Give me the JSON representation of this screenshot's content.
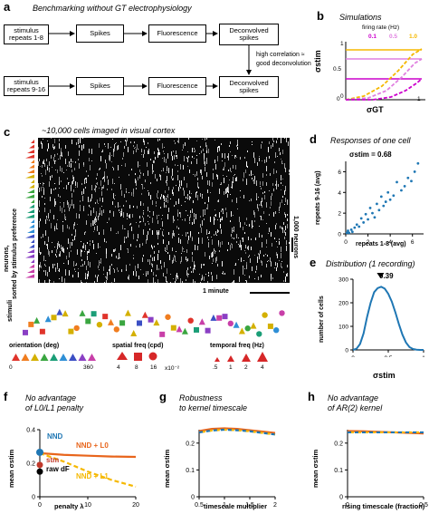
{
  "panel_a": {
    "label": "a",
    "title": "Benchmarking without GT electrophysiology",
    "row1": [
      "stimulus repeats 1-8",
      "Spikes",
      "Fluorescence",
      "Deconvolved spikes"
    ],
    "row2": [
      "stimulus repeats 9-16",
      "Spikes",
      "Fluorescence",
      "Deconvolved spikes"
    ],
    "note_line1": "high correlation ≈",
    "note_line2": "good deconvolution"
  },
  "panel_b": {
    "label": "b",
    "title": "Simulations",
    "legend_title": "firing rate (Hz)",
    "rates": [
      "0.1",
      "0.5",
      "1.0"
    ],
    "colors": [
      "#cc00cc",
      "#e080e0",
      "#f5b800"
    ],
    "xlabel": "σGT",
    "ylabel": "σstim",
    "ticks_x": [
      "0",
      "1"
    ],
    "ticks_y": [
      "0",
      "0.5",
      "1"
    ]
  },
  "panel_c": {
    "label": "c",
    "title": "~10,000 cells imaged in visual cortex",
    "ylabel_line1": "neurons,",
    "ylabel_line2": "sorted by stimulus preference",
    "scale_neurons": "1,000 neurons",
    "scale_time": "1 minute",
    "stimuli_label": "stimuli",
    "legend": {
      "orientation": "orientation (deg)",
      "orientation_ticks": [
        "0",
        "360"
      ],
      "spatial": "spatial freq (cpd)",
      "spatial_ticks": [
        "4",
        "8",
        "16"
      ],
      "spatial_unit": "x10⁻²",
      "temporal": "temporal freq (Hz)",
      "temporal_ticks": [
        ".5",
        "1",
        "2",
        "4"
      ]
    },
    "orientation_colors": [
      "#e0342b",
      "#f07d1f",
      "#d4b000",
      "#3aa640",
      "#1b9e77",
      "#2f8fd6",
      "#3b4fc4",
      "#8a3fc4",
      "#c83fa8"
    ]
  },
  "panel_d": {
    "label": "d",
    "title": "Responses of one cell",
    "annotation": "σstim = 0.68",
    "xlabel": "repeats 1-8 (avg)",
    "ylabel": "repeats 9-16 (avg)",
    "ticks_x": [
      "0",
      "2",
      "4",
      "6"
    ],
    "ticks_y": [
      "0",
      "2",
      "4",
      "6"
    ]
  },
  "panel_e": {
    "label": "e",
    "title": "Distribution (1 recording)",
    "marker": "0.39",
    "xlabel": "σstim",
    "ylabel": "number of cells",
    "ticks_x": [
      "0",
      "0.5",
      "1"
    ],
    "ticks_y": [
      "0",
      "100",
      "200",
      "300"
    ]
  },
  "panel_f": {
    "label": "f",
    "title_line1": "No advantage",
    "title_line2": "of L0/L1 penalty",
    "xlabel": "penalty λ",
    "ylabel": "mean σstim",
    "ticks_x": [
      "0",
      "10",
      "20"
    ],
    "ticks_y": [
      "0",
      "0.2",
      "0.4"
    ],
    "labels": {
      "nnd": "NND",
      "nnd_l0": "NND + L0",
      "stm": "stm",
      "raw": "raw dF",
      "nnd_l1": "NND + L1"
    }
  },
  "panel_g": {
    "label": "g",
    "title_line1": "Robustness",
    "title_line2": "to kernel timescale",
    "xlabel": "timescale multiplier",
    "ylabel": "mean σstim",
    "ticks_x": [
      "0.5",
      "1",
      "1.5",
      "2"
    ],
    "ticks_y": [
      "0",
      "0.1",
      "0.2"
    ]
  },
  "panel_h": {
    "label": "h",
    "title_line1": "No advantage",
    "title_line2": "of AR(2) kernel",
    "xlabel": "rising timescale (fraction)",
    "ylabel": "mean σstim",
    "ticks_x": [
      "0",
      "0.5"
    ],
    "ticks_y": [
      "0",
      "0.1",
      "0.2"
    ]
  },
  "chart_data": [
    {
      "type": "scatter",
      "title": "Responses of one cell",
      "xlabel": "repeats 1-8 (avg)",
      "ylabel": "repeats 9-16 (avg)",
      "xlim": [
        0,
        7
      ],
      "ylim": [
        0,
        7
      ],
      "points": [
        [
          0.1,
          0.1
        ],
        [
          0.2,
          0.3
        ],
        [
          0.3,
          0.1
        ],
        [
          0.5,
          0.4
        ],
        [
          0.6,
          0.2
        ],
        [
          0.8,
          0.6
        ],
        [
          1.0,
          0.9
        ],
        [
          1.2,
          0.7
        ],
        [
          1.4,
          1.5
        ],
        [
          1.6,
          1.1
        ],
        [
          1.8,
          1.9
        ],
        [
          2.0,
          1.4
        ],
        [
          2.2,
          2.5
        ],
        [
          2.4,
          2.0
        ],
        [
          2.6,
          1.6
        ],
        [
          2.8,
          2.9
        ],
        [
          3.0,
          2.3
        ],
        [
          3.2,
          3.6
        ],
        [
          3.4,
          2.7
        ],
        [
          3.6,
          3.1
        ],
        [
          3.8,
          4.0
        ],
        [
          4.0,
          3.3
        ],
        [
          4.3,
          3.7
        ],
        [
          4.6,
          5.0
        ],
        [
          5.0,
          4.2
        ],
        [
          5.3,
          4.6
        ],
        [
          5.6,
          5.4
        ],
        [
          5.9,
          5.1
        ],
        [
          6.2,
          6.0
        ],
        [
          6.5,
          6.8
        ]
      ]
    },
    {
      "type": "area",
      "title": "Distribution (1 recording)",
      "xlabel": "σstim",
      "ylabel": "number of cells",
      "xlim": [
        0,
        1
      ],
      "ylim": [
        0,
        300
      ],
      "x": [
        0.0,
        0.05,
        0.1,
        0.15,
        0.2,
        0.25,
        0.3,
        0.35,
        0.4,
        0.45,
        0.5,
        0.55,
        0.6,
        0.65,
        0.7,
        0.75,
        0.8,
        0.85,
        0.9,
        0.95,
        1.0
      ],
      "values": [
        0,
        5,
        25,
        70,
        140,
        200,
        245,
        262,
        268,
        260,
        238,
        205,
        160,
        110,
        65,
        32,
        12,
        4,
        1,
        0,
        0
      ]
    },
    {
      "type": "line",
      "title": "No advantage of L0/L1 penalty",
      "xlabel": "penalty λ",
      "ylabel": "mean σstim",
      "xlim": [
        0,
        20
      ],
      "ylim": [
        0,
        0.4
      ],
      "x": [
        0,
        5,
        10,
        15,
        20
      ],
      "series": [
        {
          "name": "NND + L0",
          "values": [
            0.26,
            0.25,
            0.245,
            0.24,
            0.238
          ]
        },
        {
          "name": "NND + L1",
          "values": [
            0.26,
            0.21,
            0.15,
            0.1,
            0.06
          ]
        }
      ],
      "points": {
        "NND": 0.265,
        "stm": 0.19,
        "raw dF": 0.15
      }
    },
    {
      "type": "line",
      "title": "Robustness to kernel timescale",
      "xlabel": "timescale multiplier",
      "ylabel": "mean σstim",
      "xlim": [
        0.5,
        2
      ],
      "ylim": [
        0,
        0.25
      ],
      "x": [
        0.5,
        0.75,
        1.0,
        1.25,
        1.5,
        1.75,
        2.0
      ],
      "series": [
        {
          "values": [
            0.245,
            0.253,
            0.255,
            0.253,
            0.248,
            0.243,
            0.238
          ]
        },
        {
          "values": [
            0.24,
            0.247,
            0.25,
            0.248,
            0.244,
            0.238,
            0.232
          ]
        }
      ]
    },
    {
      "type": "line",
      "title": "No advantage of AR(2) kernel",
      "xlabel": "rising timescale (fraction)",
      "ylabel": "mean σstim",
      "xlim": [
        0,
        0.5
      ],
      "ylim": [
        0,
        0.25
      ],
      "x": [
        0.0,
        0.1,
        0.2,
        0.3,
        0.4,
        0.5
      ],
      "series": [
        {
          "values": [
            0.245,
            0.244,
            0.242,
            0.24,
            0.238,
            0.236
          ]
        },
        {
          "values": [
            0.24,
            0.24,
            0.24,
            0.24,
            0.24,
            0.24
          ]
        }
      ]
    }
  ]
}
